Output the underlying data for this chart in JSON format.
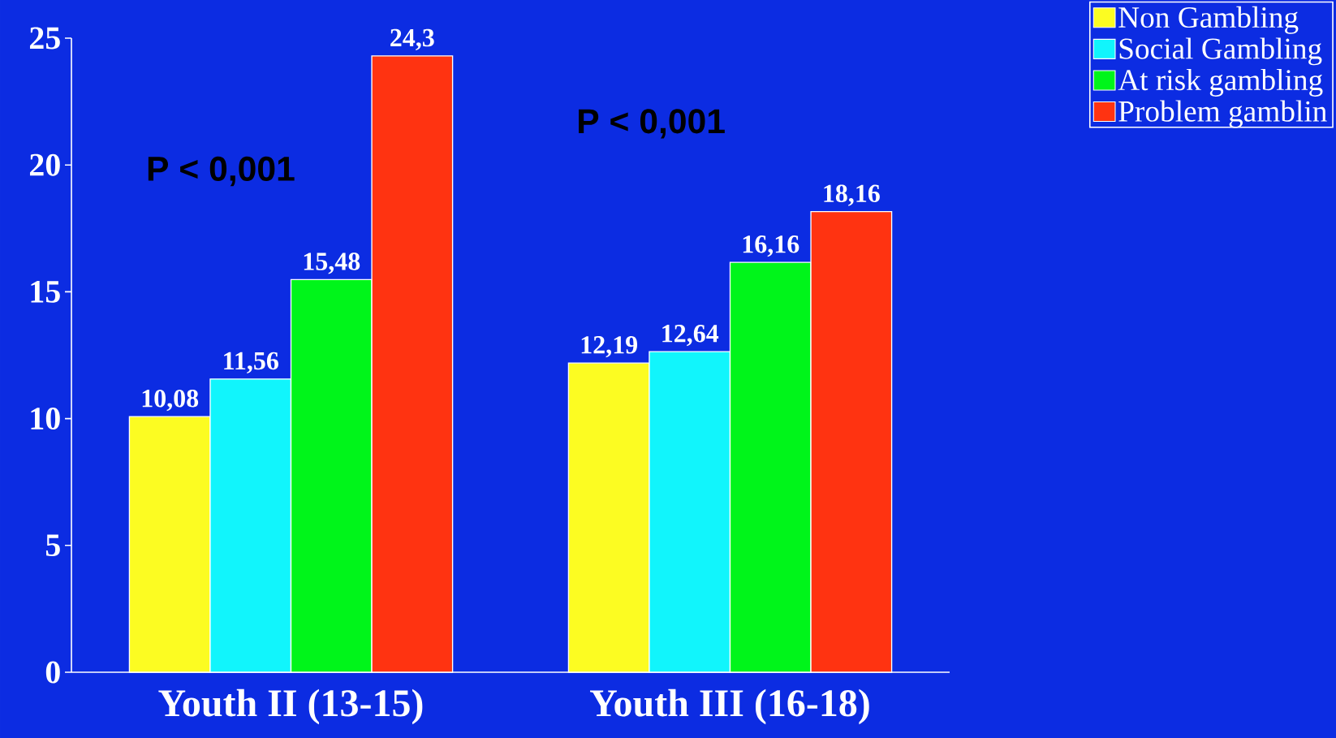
{
  "chart_data": {
    "type": "bar",
    "categories": [
      "Youth II (13-15)",
      "Youth III (16-18)"
    ],
    "series": [
      {
        "name": "Non Gambling",
        "color": "#fcfc22",
        "values": [
          10.08,
          12.19
        ],
        "value_labels": [
          "10,08",
          "12,19"
        ]
      },
      {
        "name": "Social Gambling",
        "color": "#11f5fc",
        "values": [
          11.56,
          12.64
        ],
        "value_labels": [
          "11,56",
          "12,64"
        ]
      },
      {
        "name": "At risk gambling",
        "color": "#00f51a",
        "values": [
          15.48,
          16.16
        ],
        "value_labels": [
          "15,48",
          "16,16"
        ]
      },
      {
        "name": "Problem gamblin",
        "color": "#ff3311",
        "values": [
          24.3,
          18.16
        ],
        "value_labels": [
          "24,3",
          "18,16"
        ]
      }
    ],
    "ylim": [
      0,
      25
    ],
    "yticks": [
      0,
      5,
      10,
      15,
      20,
      25
    ],
    "legend": "top right",
    "annotations": [
      "P < 0,001",
      "P < 0,001"
    ]
  }
}
